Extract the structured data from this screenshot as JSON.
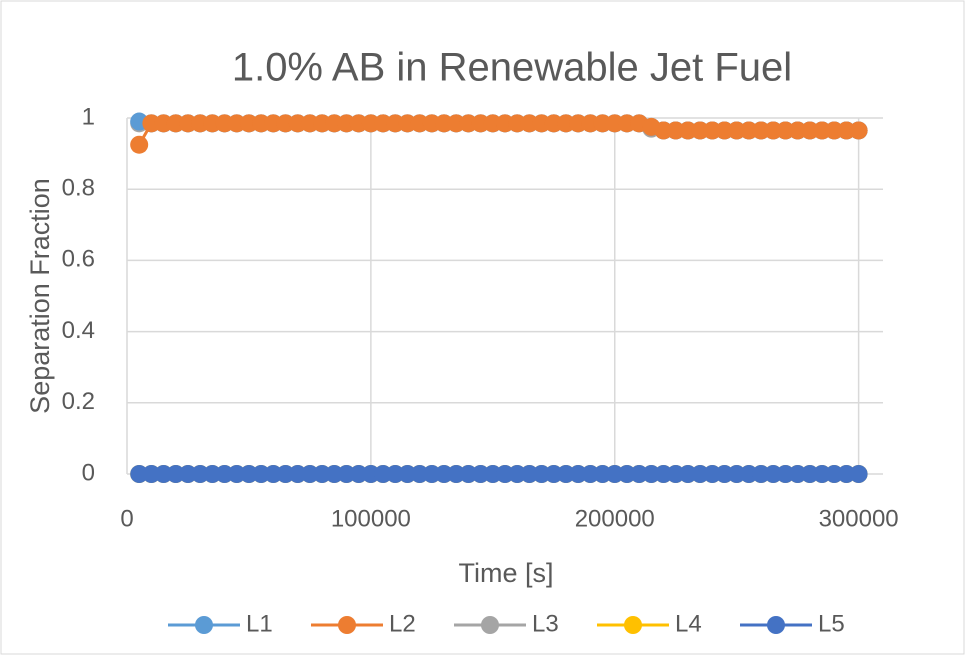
{
  "chart_data": {
    "type": "line",
    "title": "1.0% AB in Renewable Jet Fuel",
    "x_label": "Time [s]",
    "y_label": "Separation Fraction",
    "x": [
      5000,
      10000,
      15000,
      20000,
      25000,
      30000,
      35000,
      40000,
      45000,
      50000,
      55000,
      60000,
      65000,
      70000,
      75000,
      80000,
      85000,
      90000,
      95000,
      100000,
      105000,
      110000,
      115000,
      120000,
      125000,
      130000,
      135000,
      140000,
      145000,
      150000,
      155000,
      160000,
      165000,
      170000,
      175000,
      180000,
      185000,
      190000,
      195000,
      200000,
      205000,
      210000,
      215000,
      220000,
      225000,
      230000,
      235000,
      240000,
      245000,
      250000,
      255000,
      260000,
      265000,
      270000,
      275000,
      280000,
      285000,
      290000,
      295000,
      300000
    ],
    "series": [
      {
        "name": "L1",
        "color": "#5b9bd5",
        "values": [
          0.99,
          0.985,
          0.985,
          0.985,
          0.985,
          0.985,
          0.985,
          0.985,
          0.985,
          0.985,
          0.985,
          0.985,
          0.985,
          0.985,
          0.985,
          0.985,
          0.985,
          0.985,
          0.985,
          0.985,
          0.985,
          0.985,
          0.985,
          0.985,
          0.985,
          0.985,
          0.985,
          0.985,
          0.985,
          0.985,
          0.985,
          0.985,
          0.985,
          0.985,
          0.985,
          0.985,
          0.985,
          0.985,
          0.985,
          0.985,
          0.985,
          0.985,
          0.975,
          0.965,
          0.965,
          0.965,
          0.965,
          0.965,
          0.965,
          0.965,
          0.965,
          0.965,
          0.965,
          0.965,
          0.965,
          0.965,
          0.965,
          0.965,
          0.965,
          0.965
        ]
      },
      {
        "name": "L2",
        "color": "#ed7d31",
        "values": [
          0.925,
          0.985,
          0.985,
          0.985,
          0.985,
          0.985,
          0.985,
          0.985,
          0.985,
          0.985,
          0.985,
          0.985,
          0.985,
          0.985,
          0.985,
          0.985,
          0.985,
          0.985,
          0.985,
          0.985,
          0.985,
          0.985,
          0.985,
          0.985,
          0.985,
          0.985,
          0.985,
          0.985,
          0.985,
          0.985,
          0.985,
          0.985,
          0.985,
          0.985,
          0.985,
          0.985,
          0.985,
          0.985,
          0.985,
          0.985,
          0.985,
          0.985,
          0.975,
          0.965,
          0.965,
          0.965,
          0.965,
          0.965,
          0.965,
          0.965,
          0.965,
          0.965,
          0.965,
          0.965,
          0.965,
          0.965,
          0.965,
          0.965,
          0.965,
          0.965
        ]
      },
      {
        "name": "L3",
        "color": "#a5a5a5",
        "values": [
          0.985,
          0.985,
          0.985,
          0.985,
          0.985,
          0.985,
          0.985,
          0.985,
          0.985,
          0.985,
          0.985,
          0.985,
          0.985,
          0.985,
          0.985,
          0.985,
          0.985,
          0.985,
          0.985,
          0.985,
          0.985,
          0.985,
          0.985,
          0.985,
          0.985,
          0.985,
          0.985,
          0.985,
          0.985,
          0.985,
          0.985,
          0.985,
          0.985,
          0.985,
          0.985,
          0.985,
          0.985,
          0.985,
          0.985,
          0.985,
          0.985,
          0.985,
          0.97,
          0.965,
          0.965,
          0.965,
          0.965,
          0.965,
          0.965,
          0.965,
          0.965,
          0.965,
          0.965,
          0.965,
          0.965,
          0.965,
          0.965,
          0.965,
          0.965,
          0.965
        ]
      },
      {
        "name": "L4",
        "color": "#ffc000",
        "values": [
          0,
          0,
          0,
          0,
          0,
          0,
          0,
          0,
          0,
          0,
          0,
          0,
          0,
          0,
          0,
          0,
          0,
          0,
          0,
          0,
          0,
          0,
          0,
          0,
          0,
          0,
          0,
          0,
          0,
          0,
          0,
          0,
          0,
          0,
          0,
          0,
          0,
          0,
          0,
          0,
          0,
          0,
          0,
          0,
          0,
          0,
          0,
          0,
          0,
          0,
          0,
          0,
          0,
          0,
          0,
          0,
          0,
          0,
          0,
          0
        ]
      },
      {
        "name": "L5",
        "color": "#4472c4",
        "values": [
          0,
          0,
          0,
          0,
          0,
          0,
          0,
          0,
          0,
          0,
          0,
          0,
          0,
          0,
          0,
          0,
          0,
          0,
          0,
          0,
          0,
          0,
          0,
          0,
          0,
          0,
          0,
          0,
          0,
          0,
          0,
          0,
          0,
          0,
          0,
          0,
          0,
          0,
          0,
          0,
          0,
          0,
          0,
          0,
          0,
          0,
          0,
          0,
          0,
          0,
          0,
          0,
          0,
          0,
          0,
          0,
          0,
          0,
          0,
          0
        ]
      }
    ],
    "xlim": [
      0,
      310000
    ],
    "xticks": [
      0,
      100000,
      200000,
      300000
    ],
    "ylim": [
      0,
      1
    ],
    "yticks": [
      0,
      0.2,
      0.4,
      0.6,
      0.8,
      1
    ],
    "grid": true,
    "legend": "bottom"
  }
}
